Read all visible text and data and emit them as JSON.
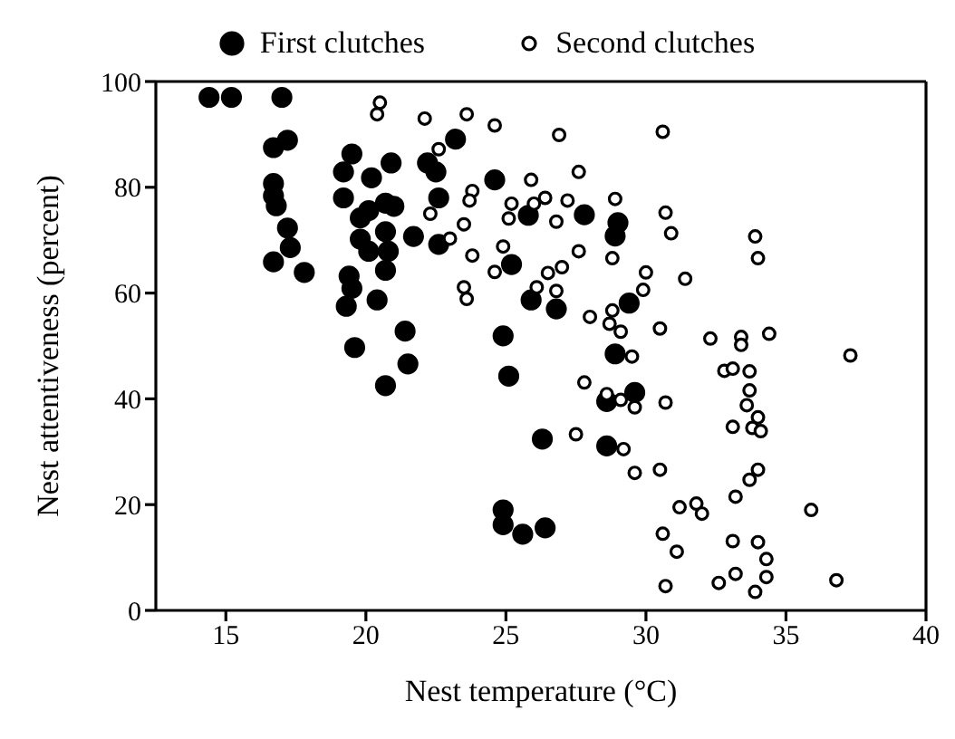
{
  "chart_data": {
    "type": "scatter",
    "xlabel": "Nest temperature (°C)",
    "ylabel": "Nest attentiveness (percent)",
    "xlim": [
      12.5,
      40
    ],
    "xticks": [
      15,
      20,
      25,
      30,
      35,
      40
    ],
    "ylim": [
      0,
      100
    ],
    "yticks": [
      0,
      20,
      40,
      60,
      80,
      100
    ],
    "legend": "top",
    "marker": "circle",
    "series": [
      {
        "name": "First clutches",
        "color": "#000000",
        "x": [
          14.4,
          15.2,
          17.0,
          16.7,
          17.2,
          16.7,
          16.7,
          16.8,
          17.2,
          17.3,
          16.7,
          17.8,
          19.5,
          19.2,
          20.2,
          20.9,
          19.2,
          19.8,
          20.1,
          20.7,
          21.0,
          20.7,
          19.8,
          20.1,
          20.8,
          20.7,
          21.7,
          22.6,
          19.4,
          19.5,
          19.3,
          20.4,
          21.4,
          19.6,
          22.2,
          22.5,
          22.6,
          23.2,
          24.6,
          25.2,
          25.9,
          24.9,
          25.8,
          27.8,
          29.0,
          28.9,
          26.8,
          29.4,
          21.5,
          20.7,
          25.1,
          26.3,
          24.9,
          24.9,
          25.6,
          26.4,
          28.9,
          28.6,
          28.6,
          29.6
        ],
        "values": [
          97,
          97,
          97,
          87.5,
          88.9,
          80.7,
          78.4,
          76.5,
          72.3,
          68.6,
          65.9,
          63.9,
          86.3,
          82.9,
          81.8,
          84.6,
          78.0,
          74.2,
          75.6,
          77.0,
          76.4,
          71.6,
          70.2,
          67.9,
          67.9,
          64.3,
          70.7,
          69.2,
          63.2,
          60.9,
          57.5,
          58.7,
          52.8,
          49.7,
          84.6,
          82.9,
          78.0,
          89.1,
          81.4,
          65.4,
          58.7,
          51.9,
          74.7,
          74.8,
          73.3,
          70.8,
          57.0,
          58.1,
          46.6,
          42.5,
          44.3,
          32.4,
          19.0,
          16.2,
          14.4,
          15.6,
          48.5,
          39.5,
          31.1,
          41.2
        ]
      },
      {
        "name": "Second clutches",
        "color": "#ffffff",
        "x": [
          20.5,
          20.4,
          22.1,
          23.6,
          24.6,
          22.6,
          23.8,
          23.7,
          22.3,
          23.5,
          23.0,
          23.8,
          24.9,
          24.6,
          23.5,
          23.6,
          25.9,
          25.2,
          25.1,
          26.0,
          26.1,
          26.9,
          30.6,
          27.6,
          26.4,
          27.2,
          26.8,
          28.9,
          30.7,
          30.9,
          33.9,
          34.0,
          27.6,
          28.8,
          26.5,
          27.0,
          26.8,
          30.0,
          29.9,
          31.4,
          28.0,
          28.8,
          28.7,
          29.1,
          30.5,
          32.3,
          33.4,
          33.4,
          34.4,
          29.5,
          37.3,
          27.8,
          28.6,
          29.1,
          29.6,
          30.7,
          32.8,
          33.1,
          33.7,
          33.7,
          33.6,
          34.0,
          33.1,
          33.8,
          34.1,
          27.5,
          29.2,
          29.6,
          30.5,
          34.0,
          33.7,
          33.2,
          31.2,
          31.8,
          32.0,
          35.9,
          30.6,
          31.1,
          33.1,
          34.0,
          34.3,
          33.2,
          34.3,
          32.6,
          30.7,
          33.9,
          36.8
        ],
        "values": [
          96.0,
          93.8,
          93.0,
          93.8,
          91.7,
          87.2,
          79.3,
          77.5,
          75.0,
          73.0,
          70.3,
          67.1,
          68.8,
          64.0,
          61.1,
          58.9,
          81.4,
          76.9,
          74.1,
          76.9,
          61.1,
          89.9,
          90.5,
          82.9,
          78.0,
          77.5,
          73.5,
          77.8,
          75.2,
          71.3,
          70.7,
          66.6,
          67.9,
          66.6,
          63.8,
          64.9,
          60.4,
          63.9,
          60.6,
          62.7,
          55.5,
          56.7,
          54.2,
          52.7,
          53.3,
          51.4,
          51.7,
          50.2,
          52.3,
          48.0,
          48.2,
          43.1,
          40.9,
          39.8,
          38.4,
          39.3,
          45.3,
          45.7,
          45.2,
          41.6,
          38.8,
          36.5,
          34.7,
          34.5,
          33.9,
          33.3,
          30.5,
          26.0,
          26.6,
          26.6,
          24.7,
          21.5,
          19.5,
          20.2,
          18.3,
          19.0,
          14.5,
          11.1,
          13.1,
          12.9,
          9.7,
          6.9,
          6.3,
          5.2,
          4.6,
          3.5,
          5.7
        ]
      }
    ]
  }
}
